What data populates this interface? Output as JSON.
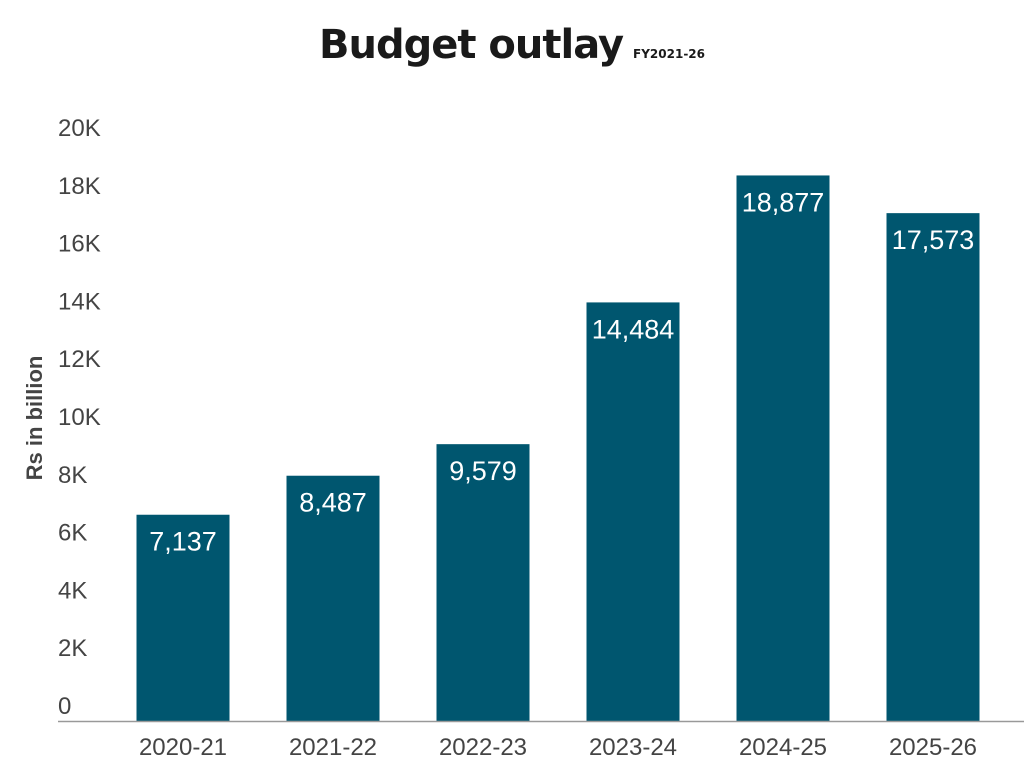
{
  "chart_data": {
    "type": "bar",
    "title": "Budget outlay",
    "subtitle": "FY2021-26",
    "xlabel": "",
    "ylabel": "Rs in billion",
    "ylim": [
      0,
      20000
    ],
    "yticks": [
      0,
      2000,
      4000,
      6000,
      8000,
      10000,
      12000,
      14000,
      16000,
      18000,
      20000
    ],
    "ytick_labels": [
      "0",
      "2K",
      "4K",
      "6K",
      "8K",
      "10K",
      "12K",
      "14K",
      "16K",
      "18K",
      "20K"
    ],
    "categories": [
      "2020-21",
      "2021-22",
      "2022-23",
      "2023-24",
      "2024-25",
      "2025-26"
    ],
    "values": [
      7137,
      8487,
      9579,
      14484,
      18877,
      17573
    ],
    "data_labels": [
      "7,137",
      "8,487",
      "9,579",
      "14,484",
      "18,877",
      "17,573"
    ],
    "bar_color": "#00566f",
    "grid": false
  }
}
